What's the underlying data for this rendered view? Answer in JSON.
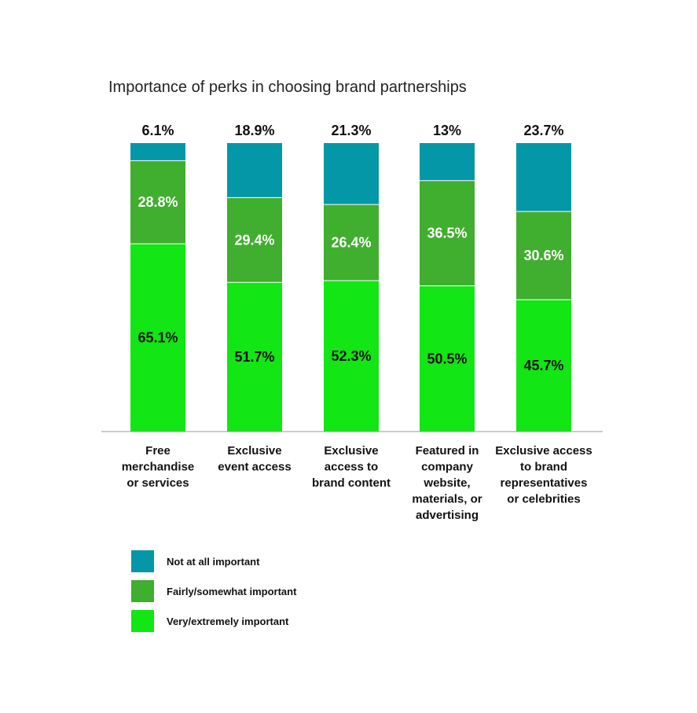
{
  "chart_data": {
    "type": "bar",
    "stacked": true,
    "title": "Importance of perks in choosing brand partnerships",
    "categories": [
      [
        "Free",
        "merchandise",
        "or services"
      ],
      [
        "Exclusive",
        "event access"
      ],
      [
        "Exclusive",
        "access to",
        "brand content"
      ],
      [
        "Featured in",
        "company",
        "website,",
        "materials, or",
        "advertising"
      ],
      [
        "Exclusive access",
        "to brand",
        "representatives",
        "or celebrities"
      ]
    ],
    "series": [
      {
        "name": "Very/extremely important",
        "color": "#12e614",
        "values": [
          65.1,
          51.7,
          52.3,
          50.5,
          45.7
        ],
        "labels": [
          "65.1%",
          "51.7%",
          "52.3%",
          "50.5%",
          "45.7%"
        ],
        "label_color": "#111111"
      },
      {
        "name": "Fairly/somewhat important",
        "color": "#40ae2e",
        "values": [
          28.8,
          29.4,
          26.4,
          36.5,
          30.6
        ],
        "labels": [
          "28.8%",
          "29.4%",
          "26.4%",
          "36.5%",
          "30.6%"
        ],
        "label_color": "#ffffff"
      },
      {
        "name": "Not at all important",
        "color": "#0497a8",
        "values": [
          6.1,
          18.9,
          21.3,
          13,
          23.7
        ],
        "labels": [
          "6.1%",
          "18.9%",
          "21.3%",
          "13%",
          "23.7%"
        ],
        "label_color": "#111111"
      }
    ],
    "legend_order": [
      "Not at all important",
      "Fairly/somewhat important",
      "Very/extremely important"
    ],
    "legend_position": "bottom-left",
    "grid": false
  }
}
